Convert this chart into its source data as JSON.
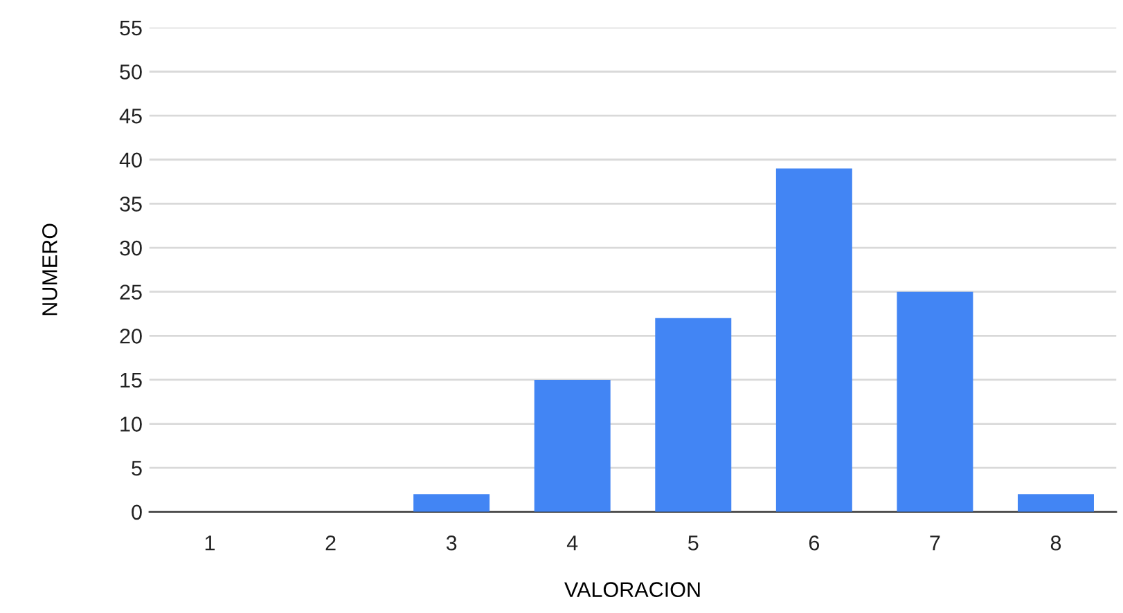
{
  "chart_data": {
    "type": "bar",
    "xlabel": "VALORACION",
    "ylabel": "NUMERO",
    "categories": [
      "1",
      "2",
      "3",
      "4",
      "5",
      "6",
      "7",
      "8"
    ],
    "values": [
      0,
      0,
      2,
      15,
      22,
      39,
      25,
      2
    ],
    "color": "#4285f4",
    "ylim": [
      0,
      55
    ],
    "yticks": [
      0,
      5,
      10,
      15,
      20,
      25,
      30,
      35,
      40,
      45,
      50,
      55
    ],
    "grid": "y",
    "legend": false
  }
}
